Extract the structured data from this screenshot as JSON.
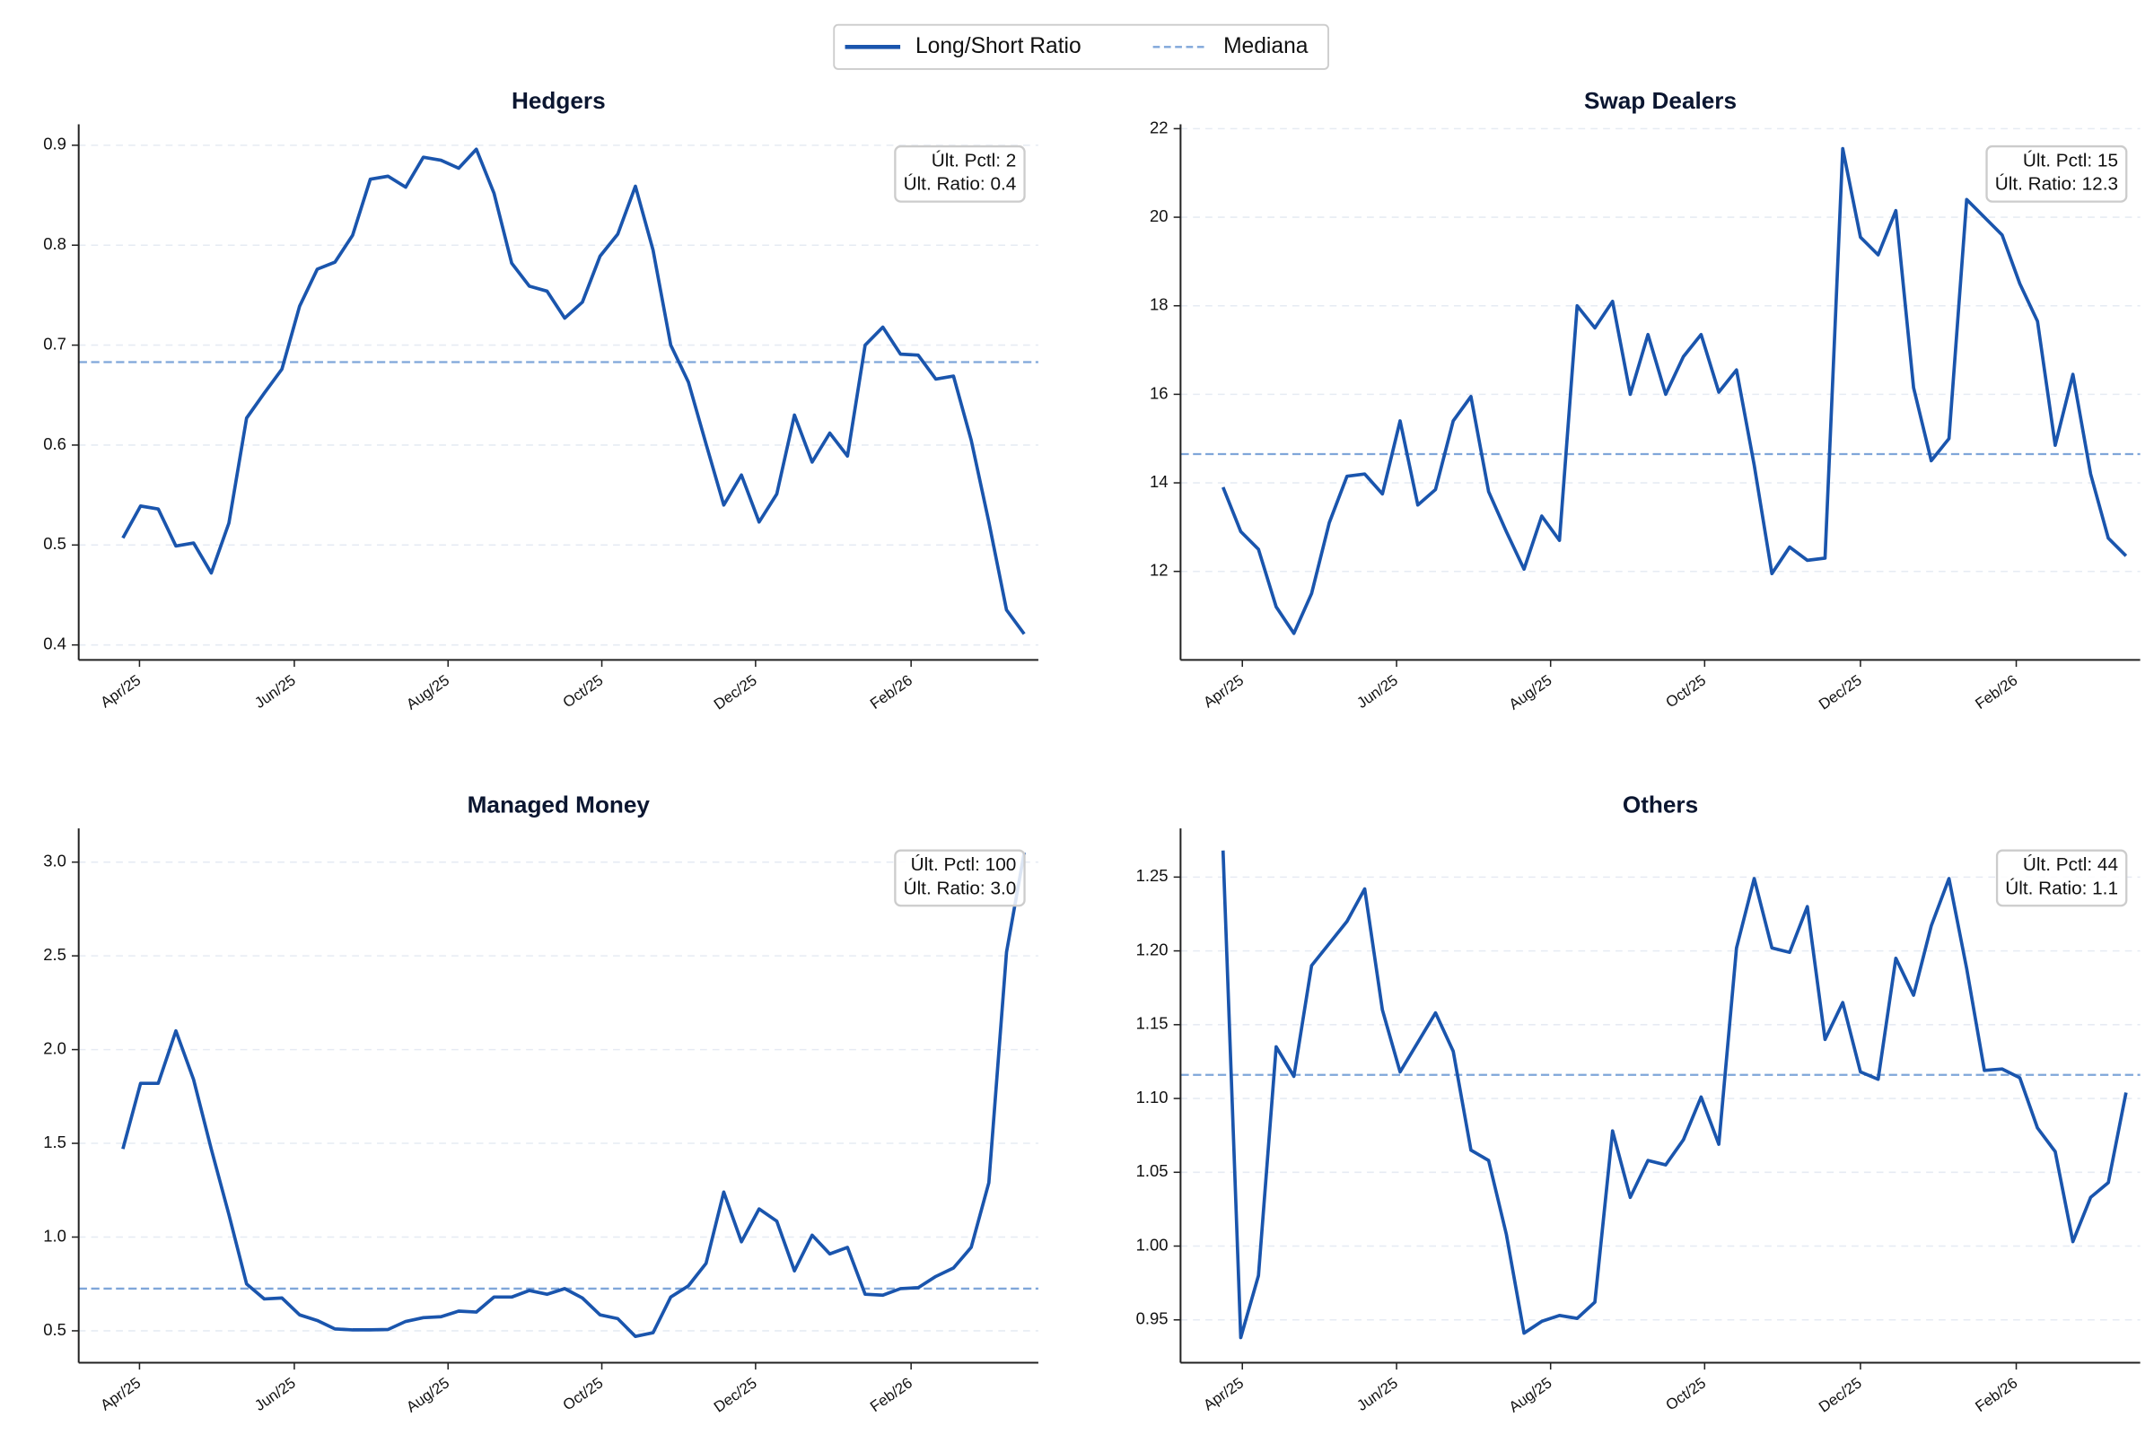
{
  "legend": {
    "items": [
      {
        "name": "Long/Short Ratio",
        "style": "solid",
        "color": "#1a55ad"
      },
      {
        "name": "Mediana",
        "style": "dashed",
        "color": "#7fa6d9"
      }
    ]
  },
  "chart_data": [
    {
      "type": "line",
      "title": "Hedgers",
      "xlim": [
        -2.5,
        51.8
      ],
      "xticks": [
        {
          "value": 0.94,
          "label": "Apr/25"
        },
        {
          "value": 9.7,
          "label": "Jun/25"
        },
        {
          "value": 18.4,
          "label": "Aug/25"
        },
        {
          "value": 27.1,
          "label": "Oct/25"
        },
        {
          "value": 35.8,
          "label": "Dec/25"
        },
        {
          "value": 44.6,
          "label": "Feb/26"
        }
      ],
      "ylim": [
        0.385,
        0.921
      ],
      "yticks": [
        0.4,
        0.5,
        0.6,
        0.7,
        0.8,
        0.9
      ],
      "grid": true,
      "series": [
        {
          "name": "Long/Short Ratio",
          "color": "#1a55ad",
          "values": [
            0.507,
            0.539,
            0.536,
            0.499,
            0.502,
            0.472,
            0.522,
            0.627,
            0.652,
            0.676,
            0.739,
            0.776,
            0.783,
            0.81,
            0.866,
            0.869,
            0.858,
            0.888,
            0.885,
            0.877,
            0.896,
            0.852,
            0.782,
            0.759,
            0.754,
            0.727,
            0.743,
            0.789,
            0.811,
            0.859,
            0.795,
            0.7,
            0.663,
            0.601,
            0.54,
            0.57,
            0.523,
            0.551,
            0.63,
            0.583,
            0.612,
            0.589,
            0.7,
            0.718,
            0.691,
            0.69,
            0.666,
            0.669,
            0.605,
            0.523,
            0.435,
            0.411
          ]
        }
      ],
      "reference": {
        "name": "Mediana",
        "color": "#7fa6d9",
        "value": 0.683
      },
      "annotation": [
        "Últ. Pctl: 2",
        "Últ. Ratio: 0.4"
      ]
    },
    {
      "type": "line",
      "title": "Swap Dealers",
      "xlim": [
        -2.4,
        51.8
      ],
      "xticks": [
        {
          "value": 1.09,
          "label": "Apr/25"
        },
        {
          "value": 9.8,
          "label": "Jun/25"
        },
        {
          "value": 18.5,
          "label": "Aug/25"
        },
        {
          "value": 27.2,
          "label": "Oct/25"
        },
        {
          "value": 36.0,
          "label": "Dec/25"
        },
        {
          "value": 44.8,
          "label": "Feb/26"
        }
      ],
      "ylim": [
        10.0,
        22.1
      ],
      "yticks": [
        12,
        14,
        16,
        18,
        20,
        22
      ],
      "grid": true,
      "series": [
        {
          "name": "Long/Short Ratio",
          "color": "#1a55ad",
          "values": [
            13.9,
            12.9,
            12.5,
            11.2,
            10.6,
            11.5,
            13.1,
            14.15,
            14.2,
            13.75,
            15.4,
            13.5,
            13.85,
            15.4,
            15.95,
            13.8,
            12.9,
            12.05,
            13.25,
            12.7,
            18.0,
            17.5,
            18.1,
            16.0,
            17.35,
            16.0,
            16.85,
            17.35,
            16.05,
            16.55,
            14.4,
            11.95,
            12.55,
            12.25,
            12.3,
            21.55,
            19.55,
            19.15,
            20.15,
            16.15,
            14.5,
            15.0,
            20.4,
            20.0,
            19.6,
            18.5,
            17.65,
            14.85,
            16.45,
            14.2,
            12.75,
            12.35
          ]
        }
      ],
      "reference": {
        "name": "Mediana",
        "color": "#7fa6d9",
        "value": 14.65
      },
      "annotation": [
        "Últ. Pctl: 15",
        "Últ. Ratio: 12.3"
      ]
    },
    {
      "type": "line",
      "title": "Managed Money",
      "xlim": [
        -2.5,
        51.8
      ],
      "xticks": [
        {
          "value": 0.94,
          "label": "Apr/25"
        },
        {
          "value": 9.7,
          "label": "Jun/25"
        },
        {
          "value": 18.4,
          "label": "Aug/25"
        },
        {
          "value": 27.1,
          "label": "Oct/25"
        },
        {
          "value": 35.8,
          "label": "Dec/25"
        },
        {
          "value": 44.6,
          "label": "Feb/26"
        }
      ],
      "ylim": [
        0.33,
        3.18
      ],
      "yticks": [
        0.5,
        {
          "value": 1,
          "label": "1.0"
        },
        1.5,
        {
          "value": 2,
          "label": "2.0"
        },
        2.5,
        {
          "value": 3,
          "label": "3.0"
        }
      ],
      "grid": true,
      "series": [
        {
          "name": "Long/Short Ratio",
          "color": "#1a55ad",
          "values": [
            1.47,
            1.82,
            1.82,
            2.1,
            1.84,
            1.47,
            1.12,
            0.75,
            0.67,
            0.675,
            0.585,
            0.555,
            0.51,
            0.505,
            0.505,
            0.507,
            0.55,
            0.57,
            0.575,
            0.605,
            0.6,
            0.68,
            0.68,
            0.715,
            0.695,
            0.725,
            0.675,
            0.585,
            0.565,
            0.47,
            0.49,
            0.68,
            0.74,
            0.86,
            1.24,
            0.975,
            1.15,
            1.085,
            0.82,
            1.01,
            0.91,
            0.945,
            0.695,
            0.69,
            0.725,
            0.73,
            0.79,
            0.835,
            0.945,
            1.29,
            2.52,
            3.05
          ]
        }
      ],
      "reference": {
        "name": "Mediana",
        "color": "#7fa6d9",
        "value": 0.725
      },
      "annotation": [
        "Últ. Pctl: 100",
        "Últ. Ratio: 3.0"
      ]
    },
    {
      "type": "line",
      "title": "Others",
      "xlim": [
        -2.4,
        51.8
      ],
      "xticks": [
        {
          "value": 1.09,
          "label": "Apr/25"
        },
        {
          "value": 9.8,
          "label": "Jun/25"
        },
        {
          "value": 18.5,
          "label": "Aug/25"
        },
        {
          "value": 27.2,
          "label": "Oct/25"
        },
        {
          "value": 36.0,
          "label": "Dec/25"
        },
        {
          "value": 44.8,
          "label": "Feb/26"
        }
      ],
      "ylim": [
        0.921,
        1.283
      ],
      "yticks": [
        0.95,
        {
          "value": 1,
          "label": "1.00"
        },
        1.05,
        {
          "value": 1.1,
          "label": "1.10"
        },
        1.15,
        {
          "value": 1.2,
          "label": "1.20"
        },
        1.25
      ],
      "grid": true,
      "series": [
        {
          "name": "Long/Short Ratio",
          "color": "#1a55ad",
          "values": [
            1.268,
            0.938,
            0.98,
            1.135,
            1.115,
            1.19,
            1.205,
            1.22,
            1.242,
            1.16,
            1.118,
            1.138,
            1.158,
            1.132,
            1.065,
            1.058,
            1.008,
            0.941,
            0.949,
            0.953,
            0.951,
            0.962,
            1.078,
            1.033,
            1.058,
            1.055,
            1.072,
            1.101,
            1.069,
            1.202,
            1.249,
            1.202,
            1.199,
            1.23,
            1.14,
            1.165,
            1.118,
            1.113,
            1.195,
            1.17,
            1.217,
            1.249,
            1.188,
            1.119,
            1.12,
            1.114,
            1.08,
            1.064,
            1.003,
            1.033,
            1.043,
            1.104
          ]
        }
      ],
      "reference": {
        "name": "Mediana",
        "color": "#7fa6d9",
        "value": 1.116
      },
      "annotation": [
        "Últ. Pctl: 44",
        "Últ. Ratio: 1.1"
      ]
    }
  ]
}
